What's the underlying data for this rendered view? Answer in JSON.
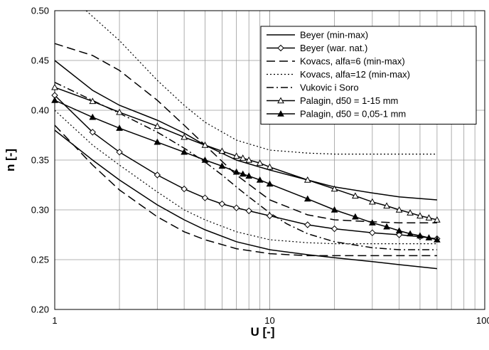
{
  "chart_data": {
    "type": "line",
    "xlabel": "U [-]",
    "ylabel": "n [-]",
    "x_scale": "log",
    "xlim": [
      1,
      100
    ],
    "ylim": [
      0.2,
      0.5
    ],
    "x_tick_labels": [
      "1",
      "10",
      "100"
    ],
    "y_tick_labels": [
      "0.20",
      "0.25",
      "0.30",
      "0.35",
      "0.40",
      "0.45",
      "0.50"
    ],
    "grid": true,
    "legend_position": "top-right",
    "series": [
      {
        "name": "Beyer (min-max)",
        "style": "solid",
        "marker": "none",
        "x": [
          1,
          1.5,
          2,
          3,
          4,
          5,
          7,
          10,
          15,
          20,
          30,
          40,
          60
        ],
        "y": [
          0.45,
          0.42,
          0.405,
          0.39,
          0.377,
          0.365,
          0.35,
          0.34,
          0.33,
          0.323,
          0.317,
          0.313,
          0.31
        ]
      },
      {
        "name": "Beyer (min-max)",
        "style": "solid",
        "marker": "none",
        "x": [
          1,
          1.5,
          2,
          3,
          4,
          5,
          7,
          10,
          15,
          20,
          30,
          40,
          60
        ],
        "y": [
          0.38,
          0.35,
          0.33,
          0.305,
          0.29,
          0.28,
          0.268,
          0.26,
          0.255,
          0.252,
          0.248,
          0.245,
          0.241
        ]
      },
      {
        "name": "Beyer (war. nat.)",
        "style": "solid",
        "marker": "diamond",
        "x": [
          1,
          1.5,
          2,
          3,
          4,
          5,
          6,
          7,
          8,
          10,
          15,
          20,
          30,
          40,
          50,
          60
        ],
        "y": [
          0.415,
          0.378,
          0.358,
          0.335,
          0.321,
          0.312,
          0.306,
          0.302,
          0.299,
          0.294,
          0.285,
          0.281,
          0.277,
          0.275,
          0.273,
          0.271
        ]
      },
      {
        "name": "Kovacs, alfa=6 (min-max)",
        "style": "dash",
        "marker": "none",
        "x": [
          1,
          1.5,
          2,
          3,
          4,
          5,
          7,
          10,
          15,
          20,
          30,
          40,
          60
        ],
        "y": [
          0.467,
          0.455,
          0.44,
          0.41,
          0.385,
          0.365,
          0.335,
          0.31,
          0.295,
          0.29,
          0.288,
          0.287,
          0.287
        ]
      },
      {
        "name": "Kovacs, alfa=6 (min-max)",
        "style": "dash",
        "marker": "none",
        "x": [
          1,
          1.5,
          2,
          3,
          4,
          5,
          7,
          10,
          15,
          20,
          30,
          40,
          60
        ],
        "y": [
          0.385,
          0.345,
          0.32,
          0.293,
          0.278,
          0.27,
          0.261,
          0.256,
          0.254,
          0.254,
          0.254,
          0.254,
          0.254
        ]
      },
      {
        "name": "Kovacs, alfa=12 (min-max)",
        "style": "dot",
        "marker": "none",
        "x": [
          1.4,
          2,
          3,
          4,
          5,
          7,
          10,
          15,
          20,
          30,
          40,
          60
        ],
        "y": [
          0.5,
          0.47,
          0.43,
          0.405,
          0.388,
          0.37,
          0.36,
          0.357,
          0.356,
          0.356,
          0.356,
          0.356
        ]
      },
      {
        "name": "Kovacs, alfa=12 (min-max)",
        "style": "dot",
        "marker": "none",
        "x": [
          1,
          1.5,
          2,
          3,
          4,
          5,
          7,
          10,
          15,
          20,
          30,
          40,
          60
        ],
        "y": [
          0.4,
          0.365,
          0.345,
          0.318,
          0.3,
          0.29,
          0.278,
          0.27,
          0.267,
          0.266,
          0.266,
          0.266,
          0.266
        ]
      },
      {
        "name": "Vukovic i Soro",
        "style": "dashdot",
        "marker": "none",
        "x": [
          1,
          2,
          3,
          4,
          5,
          6,
          7,
          8,
          10,
          12,
          15,
          20,
          30,
          40,
          60
        ],
        "y": [
          0.428,
          0.397,
          0.378,
          0.362,
          0.348,
          0.335,
          0.323,
          0.313,
          0.297,
          0.286,
          0.276,
          0.268,
          0.262,
          0.26,
          0.26
        ]
      },
      {
        "name": "Palagin, d50  = 1-15 mm",
        "style": "solid",
        "marker": "triangle-open",
        "x": [
          1,
          1.5,
          2,
          3,
          4,
          5,
          6,
          7,
          7.5,
          8,
          9,
          10,
          15,
          20,
          25,
          30,
          35,
          40,
          45,
          50,
          55,
          60
        ],
        "y": [
          0.423,
          0.409,
          0.398,
          0.384,
          0.373,
          0.365,
          0.359,
          0.354,
          0.352,
          0.35,
          0.347,
          0.343,
          0.33,
          0.321,
          0.314,
          0.308,
          0.304,
          0.3,
          0.297,
          0.294,
          0.292,
          0.29
        ]
      },
      {
        "name": "Palagin, d50 = 0,05-1 mm",
        "style": "solid",
        "marker": "triangle-filled",
        "x": [
          1,
          1.5,
          2,
          3,
          4,
          5,
          6,
          7,
          7.5,
          8,
          9,
          10,
          15,
          20,
          25,
          30,
          35,
          40,
          45,
          50,
          55,
          60
        ],
        "y": [
          0.41,
          0.393,
          0.382,
          0.368,
          0.358,
          0.35,
          0.344,
          0.338,
          0.336,
          0.334,
          0.33,
          0.326,
          0.311,
          0.3,
          0.293,
          0.287,
          0.283,
          0.279,
          0.276,
          0.274,
          0.272,
          0.27
        ]
      }
    ]
  },
  "legend": {
    "entries": [
      "Beyer (min-max)",
      "Beyer (war. nat.)",
      "Kovacs, alfa=6 (min-max)",
      "Kovacs, alfa=12 (min-max)",
      "Vukovic i Soro",
      "Palagin, d50  = 1-15 mm",
      "Palagin, d50 = 0,05-1 mm"
    ]
  }
}
